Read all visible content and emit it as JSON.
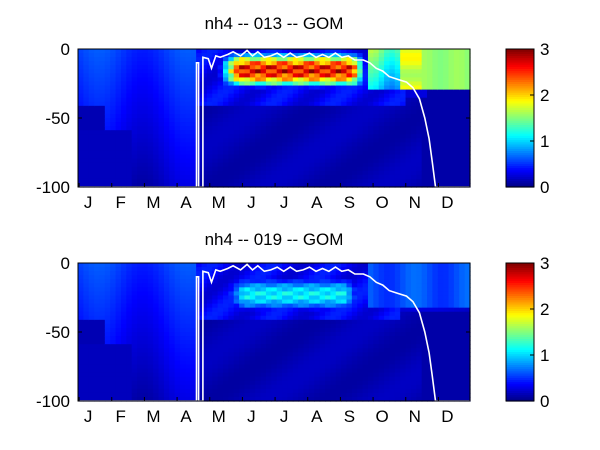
{
  "chart_data": [
    {
      "type": "heatmap",
      "title": "nh4 -- 013 -- GOM",
      "xlabel": "",
      "ylabel": "",
      "x_tick_labels": [
        "J",
        "F",
        "M",
        "A",
        "M",
        "J",
        "J",
        "A",
        "S",
        "O",
        "N",
        "D"
      ],
      "x_range": [
        1,
        365
      ],
      "y_tick_labels": [
        "0",
        "-50",
        "-100"
      ],
      "y_ticks": [
        0,
        -50,
        -100
      ],
      "ylim": [
        -100,
        0
      ],
      "colorbar": {
        "ticks": [
          "0",
          "1",
          "2",
          "3"
        ],
        "range": [
          0,
          3
        ],
        "colormap": "jet"
      },
      "white_contour": [
        [
          1,
          -100
        ],
        [
          111,
          -100
        ],
        [
          111,
          -10
        ],
        [
          113,
          -10
        ],
        [
          113,
          -100
        ],
        [
          117,
          -100
        ],
        [
          117,
          -6
        ],
        [
          122,
          -7
        ],
        [
          125,
          -14
        ],
        [
          129,
          -5
        ],
        [
          133,
          -6
        ],
        [
          140,
          -4
        ],
        [
          145,
          -2
        ],
        [
          152,
          -5
        ],
        [
          158,
          -1
        ],
        [
          163,
          -5
        ],
        [
          168,
          -2
        ],
        [
          174,
          -6
        ],
        [
          180,
          -5
        ],
        [
          186,
          -3
        ],
        [
          192,
          -6
        ],
        [
          198,
          -3
        ],
        [
          204,
          -6
        ],
        [
          210,
          -5
        ],
        [
          216,
          -3
        ],
        [
          222,
          -6
        ],
        [
          228,
          -4
        ],
        [
          234,
          -6
        ],
        [
          240,
          -3
        ],
        [
          246,
          -6
        ],
        [
          252,
          -5
        ],
        [
          258,
          -8
        ],
        [
          266,
          -8
        ],
        [
          272,
          -10
        ],
        [
          278,
          -14
        ],
        [
          284,
          -16
        ],
        [
          290,
          -20
        ],
        [
          298,
          -22
        ],
        [
          306,
          -24
        ],
        [
          312,
          -28
        ],
        [
          318,
          -36
        ],
        [
          323,
          -50
        ],
        [
          327,
          -65
        ],
        [
          330,
          -82
        ],
        [
          333,
          -100
        ],
        [
          365,
          -100
        ]
      ],
      "high_band": {
        "day_start": 140,
        "day_end": 266,
        "depth_top": -6,
        "depth_bottom": -25,
        "peak": 3.0
      }
    },
    {
      "type": "heatmap",
      "title": "nh4 -- 019 -- GOM",
      "xlabel": "",
      "ylabel": "",
      "x_tick_labels": [
        "J",
        "F",
        "M",
        "A",
        "M",
        "J",
        "J",
        "A",
        "S",
        "O",
        "N",
        "D"
      ],
      "x_range": [
        1,
        365
      ],
      "y_tick_labels": [
        "0",
        "-50",
        "-100"
      ],
      "y_ticks": [
        0,
        -50,
        -100
      ],
      "ylim": [
        -100,
        0
      ],
      "colorbar": {
        "ticks": [
          "0",
          "1",
          "2",
          "3"
        ],
        "range": [
          0,
          3
        ],
        "colormap": "jet"
      },
      "white_contour": [
        [
          1,
          -100
        ],
        [
          111,
          -100
        ],
        [
          111,
          -10
        ],
        [
          113,
          -10
        ],
        [
          113,
          -100
        ],
        [
          117,
          -100
        ],
        [
          117,
          -6
        ],
        [
          122,
          -7
        ],
        [
          125,
          -14
        ],
        [
          129,
          -5
        ],
        [
          133,
          -6
        ],
        [
          140,
          -4
        ],
        [
          145,
          -2
        ],
        [
          152,
          -5
        ],
        [
          158,
          -1
        ],
        [
          163,
          -5
        ],
        [
          168,
          -2
        ],
        [
          174,
          -6
        ],
        [
          180,
          -5
        ],
        [
          186,
          -3
        ],
        [
          192,
          -6
        ],
        [
          198,
          -3
        ],
        [
          204,
          -6
        ],
        [
          210,
          -5
        ],
        [
          216,
          -3
        ],
        [
          222,
          -6
        ],
        [
          228,
          -4
        ],
        [
          234,
          -6
        ],
        [
          240,
          -3
        ],
        [
          246,
          -6
        ],
        [
          252,
          -5
        ],
        [
          258,
          -8
        ],
        [
          266,
          -8
        ],
        [
          272,
          -10
        ],
        [
          278,
          -14
        ],
        [
          284,
          -16
        ],
        [
          290,
          -20
        ],
        [
          298,
          -22
        ],
        [
          306,
          -24
        ],
        [
          312,
          -28
        ],
        [
          318,
          -36
        ],
        [
          323,
          -50
        ],
        [
          327,
          -65
        ],
        [
          330,
          -82
        ],
        [
          333,
          -100
        ],
        [
          365,
          -100
        ]
      ],
      "high_band": {
        "day_start": 145,
        "day_end": 260,
        "depth_top": -14,
        "depth_bottom": -32,
        "peak": 1.25
      }
    }
  ]
}
